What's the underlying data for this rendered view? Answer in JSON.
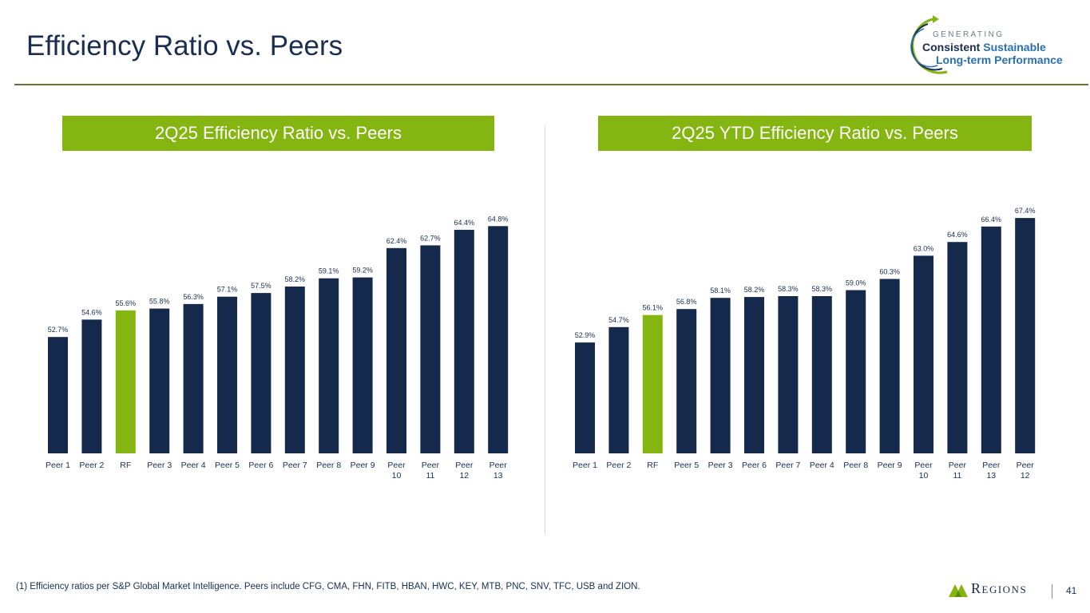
{
  "page": {
    "title": "Efficiency Ratio vs. Peers",
    "footnote": "(1) Efficiency ratios per S&P Global Market Intelligence. Peers include CFG, CMA, FHN, FITB, HBAN, HWC, KEY, MTB, PNC, SNV, TFC, USB and ZION.",
    "page_number": "41"
  },
  "logo": {
    "generating": "GENERATING",
    "consistent": "Consistent",
    "sustainable": "Sustainable",
    "long_term": "Long-term Performance",
    "brand": "Regions"
  },
  "colors": {
    "bar": "#15294d",
    "highlight": "#84b511",
    "banner": "#84b511",
    "title": "#1a2e52"
  },
  "chart_data": [
    {
      "type": "bar",
      "title": "2Q25 Efficiency Ratio vs. Peers",
      "categories": [
        "Peer 1",
        "Peer 2",
        "RF",
        "Peer 3",
        "Peer 4",
        "Peer 5",
        "Peer 6",
        "Peer 7",
        "Peer 8",
        "Peer 9",
        "Peer 10",
        "Peer 11",
        "Peer 12",
        "Peer 13"
      ],
      "values": [
        52.7,
        54.6,
        55.6,
        55.8,
        56.3,
        57.1,
        57.5,
        58.2,
        59.1,
        59.2,
        62.4,
        62.7,
        64.4,
        64.8
      ],
      "labels": [
        "52.7%",
        "54.6%",
        "55.6%",
        "55.8%",
        "56.3%",
        "57.1%",
        "57.5%",
        "58.2%",
        "59.1%",
        "59.2%",
        "62.4%",
        "62.7%",
        "64.4%",
        "64.8%"
      ],
      "highlight": "RF",
      "ylim": [
        40,
        67
      ],
      "xlabel": "",
      "ylabel": ""
    },
    {
      "type": "bar",
      "title": "2Q25 YTD Efficiency Ratio vs. Peers",
      "categories": [
        "Peer 1",
        "Peer 2",
        "RF",
        "Peer 5",
        "Peer 3",
        "Peer 6",
        "Peer 7",
        "Peer 4",
        "Peer 8",
        "Peer 9",
        "Peer 10",
        "Peer 11",
        "Peer 13",
        "Peer 12"
      ],
      "values": [
        52.9,
        54.7,
        56.1,
        56.8,
        58.1,
        58.2,
        58.3,
        58.3,
        59.0,
        60.3,
        63.0,
        64.6,
        66.4,
        67.4
      ],
      "labels": [
        "52.9%",
        "54.7%",
        "56.1%",
        "56.8%",
        "58.1%",
        "58.2%",
        "58.3%",
        "58.3%",
        "59.0%",
        "60.3%",
        "63.0%",
        "64.6%",
        "66.4%",
        "67.4%"
      ],
      "highlight": "RF",
      "ylim": [
        40,
        68.8
      ],
      "xlabel": "",
      "ylabel": ""
    }
  ]
}
